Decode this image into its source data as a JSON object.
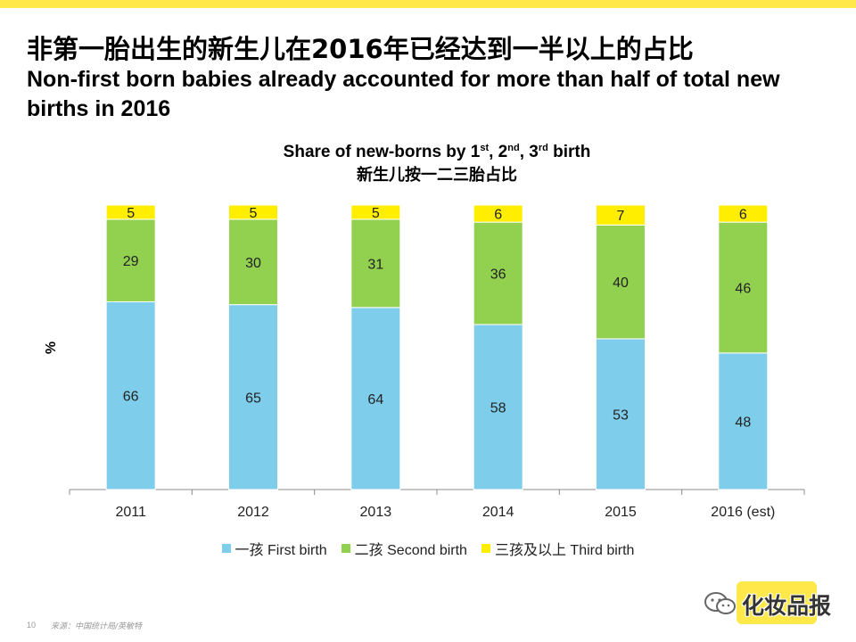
{
  "header": {
    "title_cn": "非第一胎出生的新生儿在2016年已经达到一半以上的占比",
    "title_en": "Non-first born babies already accounted for more than half of total new births in 2016"
  },
  "chart_data": {
    "type": "bar",
    "stacked": true,
    "title_en_prefix": "Share of new-borns by 1",
    "title_sup_1": "st",
    "title_sep_1": ", 2",
    "title_sup_2": "nd",
    "title_sep_2": ", 3",
    "title_sup_3": "rd",
    "title_suffix": " birth",
    "title_cn": "新生儿按一二三胎占比",
    "ylabel": "%",
    "xlabel": "",
    "ylim": [
      0,
      100
    ],
    "categories": [
      "2011",
      "2012",
      "2013",
      "2014",
      "2015",
      "2016 (est)"
    ],
    "series": [
      {
        "name": "一孩 First birth",
        "color": "#7ecdea",
        "values": [
          66,
          65,
          64,
          58,
          53,
          48
        ]
      },
      {
        "name": "二孩 Second birth",
        "color": "#92d050",
        "values": [
          29,
          30,
          31,
          36,
          40,
          46
        ]
      },
      {
        "name": "三孩及以上 Third birth",
        "color": "#ffee00",
        "values": [
          5,
          5,
          5,
          6,
          7,
          6
        ]
      }
    ]
  },
  "footer": {
    "page_number": "10",
    "source": "来源：中国统计局/英敏特"
  },
  "brand": {
    "name": "化妆品报"
  }
}
